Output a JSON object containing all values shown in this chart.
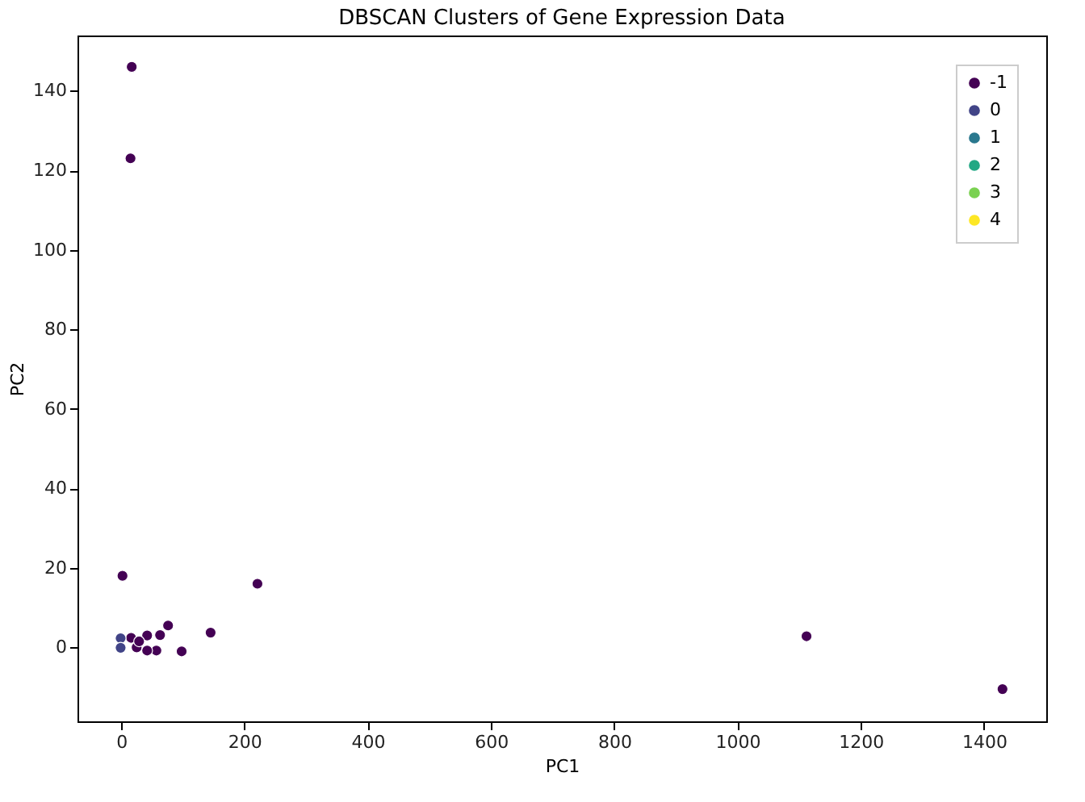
{
  "chart_data": {
    "type": "scatter",
    "title": "DBSCAN Clusters of Gene Expression Data",
    "xlabel": "PC1",
    "ylabel": "PC2",
    "xlim": [
      -71,
      1501
    ],
    "ylim": [
      -18.6,
      153.9
    ],
    "xticks": [
      0,
      200,
      400,
      600,
      800,
      1000,
      1200,
      1400
    ],
    "yticks": [
      0,
      20,
      40,
      60,
      80,
      100,
      120,
      140
    ],
    "grid": false,
    "legend": "top right",
    "marker": "circle",
    "series": [
      {
        "name": "-1",
        "color": "#440154",
        "x": [
          17,
          15,
          2,
          221,
          1112,
          1430,
          145,
          76,
          98,
          57,
          42,
          42,
          63,
          16,
          25,
          29
        ],
        "values": [
          146,
          123,
          18,
          16,
          2.8,
          -10.5,
          3.7,
          5.5,
          -1,
          -0.8,
          -0.8,
          3,
          3.1,
          2.4,
          0,
          1.5
        ]
      },
      {
        "name": "0",
        "color": "#414487",
        "x": [
          -1,
          -1
        ],
        "values": [
          2.3,
          -0.1
        ]
      },
      {
        "name": "1",
        "color": "#2a788e"
      },
      {
        "name": "2",
        "color": "#22a884"
      },
      {
        "name": "3",
        "color": "#7ad151"
      },
      {
        "name": "4",
        "color": "#fde725"
      }
    ]
  }
}
